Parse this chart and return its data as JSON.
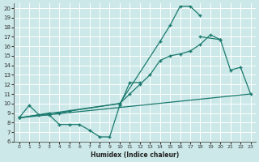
{
  "xlabel": "Humidex (Indice chaleur)",
  "bg_color": "#cce8e8",
  "grid_color": "#b0d0d0",
  "line_color": "#1a7a6e",
  "xlim": [
    -0.5,
    23.5
  ],
  "ylim": [
    6,
    20.5
  ],
  "xticks": [
    0,
    1,
    2,
    3,
    4,
    5,
    6,
    7,
    8,
    9,
    10,
    11,
    12,
    13,
    14,
    15,
    16,
    17,
    18,
    19,
    20,
    21,
    22,
    23
  ],
  "yticks": [
    6,
    7,
    8,
    9,
    10,
    11,
    12,
    13,
    14,
    15,
    16,
    17,
    18,
    19,
    20
  ],
  "line1_x": [
    0,
    1,
    2,
    3,
    4,
    5,
    6,
    7,
    8,
    9,
    10,
    11,
    12
  ],
  "line1_y": [
    8.5,
    9.8,
    8.8,
    8.8,
    7.8,
    7.8,
    7.8,
    7.2,
    6.5,
    6.5,
    9.8,
    12.2,
    12.2
  ],
  "line2_x": [
    0,
    3,
    4,
    5,
    10,
    11,
    12,
    13,
    14,
    15,
    16,
    17,
    18,
    19,
    20
  ],
  "line2_y": [
    8.5,
    9.0,
    9.0,
    9.2,
    10.0,
    11.0,
    12.0,
    13.0,
    14.5,
    15.0,
    15.2,
    15.5,
    16.2,
    17.2,
    16.7
  ],
  "line3_x": [
    0,
    10,
    14,
    15,
    16,
    17,
    18
  ],
  "line3_y": [
    8.5,
    10.0,
    16.5,
    18.2,
    20.2,
    20.2,
    19.2
  ],
  "line4_x": [
    18,
    20,
    21,
    22,
    23
  ],
  "line4_y": [
    17.0,
    16.7,
    13.5,
    13.8,
    11.0
  ],
  "line5_x": [
    0,
    23
  ],
  "line5_y": [
    8.5,
    11.0
  ]
}
